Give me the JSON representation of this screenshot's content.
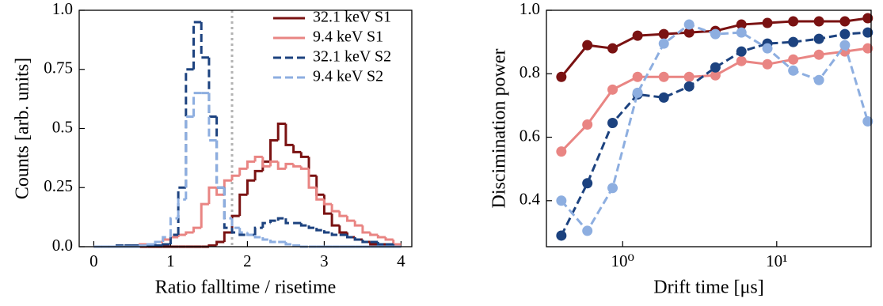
{
  "chart_data": [
    {
      "type": "histogram",
      "xlabel": "Ratio falltime / risetime",
      "ylabel": "Counts [arb. units]",
      "bins": [
        0,
        0.1,
        0.2,
        0.3,
        0.4,
        0.5,
        0.6,
        0.7,
        0.8,
        0.9,
        1.0,
        1.1,
        1.2,
        1.3,
        1.4,
        1.5,
        1.6,
        1.7,
        1.8,
        1.9,
        2.0,
        2.1,
        2.2,
        2.3,
        2.4,
        2.5,
        2.6,
        2.7,
        2.8,
        2.9,
        3.0,
        3.1,
        3.2,
        3.3,
        3.4,
        3.5,
        3.6,
        3.7,
        3.8,
        3.9,
        4.0
      ],
      "series": [
        {
          "name": "32.1 keV S1",
          "color": "#7a1212",
          "style": "solid",
          "values": [
            0,
            0,
            0,
            0,
            0,
            0,
            0,
            0,
            0,
            0,
            0,
            0,
            0,
            0,
            0,
            0.005,
            0.02,
            0.06,
            0.13,
            0.22,
            0.28,
            0.32,
            0.36,
            0.45,
            0.52,
            0.43,
            0.4,
            0.38,
            0.3,
            0.22,
            0.14,
            0.09,
            0.06,
            0.04,
            0.03,
            0.02,
            0.01,
            0.01,
            0.005,
            0
          ]
        },
        {
          "name": "9.4 keV S1",
          "color": "#e98583",
          "style": "solid",
          "values": [
            0,
            0,
            0,
            0,
            0,
            0.005,
            0.01,
            0.01,
            0.02,
            0.03,
            0.04,
            0.05,
            0.06,
            0.08,
            0.18,
            0.25,
            0.22,
            0.28,
            0.3,
            0.33,
            0.36,
            0.38,
            0.34,
            0.36,
            0.33,
            0.35,
            0.34,
            0.33,
            0.25,
            0.2,
            0.18,
            0.15,
            0.13,
            0.11,
            0.09,
            0.06,
            0.05,
            0.04,
            0.03,
            0.01
          ]
        },
        {
          "name": "32.1 keV S2",
          "color": "#1c427f",
          "style": "dashed",
          "values": [
            0,
            0,
            0,
            0.005,
            0.005,
            0.005,
            0.005,
            0.005,
            0.005,
            0.01,
            0.05,
            0.25,
            0.75,
            0.95,
            0.8,
            0.55,
            0.25,
            0.08,
            0.06,
            0.05,
            0.05,
            0.08,
            0.1,
            0.11,
            0.12,
            0.1,
            0.1,
            0.09,
            0.08,
            0.07,
            0.06,
            0.05,
            0.05,
            0.04,
            0.03,
            0.02,
            0.02,
            0.01,
            0.01,
            0
          ]
        },
        {
          "name": "9.4 keV S2",
          "color": "#8daee0",
          "style": "dashed",
          "values": [
            0,
            0,
            0,
            0,
            0,
            0,
            0.005,
            0.01,
            0.02,
            0.04,
            0.12,
            0.2,
            0.55,
            0.65,
            0.65,
            0.45,
            0.25,
            0.12,
            0.08,
            0.06,
            0.05,
            0.04,
            0.03,
            0.02,
            0.02,
            0.01,
            0.005,
            0,
            0,
            0,
            0,
            0,
            0,
            0,
            0,
            0,
            0,
            0,
            0,
            0
          ]
        }
      ],
      "vline": {
        "value": 1.8,
        "color": "#b3b3b3"
      },
      "xlim": [
        -0.19,
        4.14
      ],
      "xticks": [
        0,
        1,
        2,
        3,
        4
      ],
      "ylim": [
        0,
        1
      ],
      "yticks": [
        {
          "value": 0,
          "label": "0.0"
        },
        0.25,
        0.5,
        0.75,
        {
          "value": 1,
          "label": "1.0"
        }
      ],
      "legend": "upper right"
    },
    {
      "type": "line",
      "xlabel": "Drift time [μs]",
      "ylabel": "Discimination power",
      "xscale": "log",
      "x": [
        0.4,
        0.59,
        0.86,
        1.25,
        1.85,
        2.7,
        4.0,
        5.9,
        8.7,
        12.8,
        18.8,
        27.7,
        39
      ],
      "series": [
        {
          "name": "32.1 keV S1",
          "color": "#7a1212",
          "style": "solid",
          "values": [
            0.79,
            0.89,
            0.88,
            0.92,
            0.925,
            0.93,
            0.935,
            0.955,
            0.96,
            0.965,
            0.965,
            0.965,
            0.975
          ]
        },
        {
          "name": "9.4 keV S1",
          "color": "#e98583",
          "style": "solid",
          "values": [
            0.555,
            0.64,
            0.75,
            0.79,
            0.79,
            0.79,
            0.795,
            0.84,
            0.83,
            0.845,
            0.86,
            0.87,
            0.88
          ]
        },
        {
          "name": "32.1 keV S2",
          "color": "#1c427f",
          "style": "dashed",
          "values": [
            0.29,
            0.455,
            0.645,
            0.735,
            0.725,
            0.76,
            0.82,
            0.87,
            0.895,
            0.9,
            0.91,
            0.925,
            0.93
          ]
        },
        {
          "name": "9.4 keV S2",
          "color": "#8daee0",
          "style": "dashed",
          "values": [
            0.4,
            0.305,
            0.44,
            0.74,
            0.895,
            0.955,
            0.925,
            0.93,
            0.88,
            0.81,
            0.78,
            0.89,
            0.65
          ]
        }
      ],
      "xlim": [
        0.32,
        41
      ],
      "xticks": [
        {
          "value": 1,
          "label": "10⁰"
        },
        {
          "value": 10,
          "label": "10¹"
        }
      ],
      "ylim": [
        0.255,
        1.0
      ],
      "yticks": [
        0.4,
        0.6,
        0.8,
        {
          "value": 1.0,
          "label": "1.0"
        }
      ]
    }
  ]
}
